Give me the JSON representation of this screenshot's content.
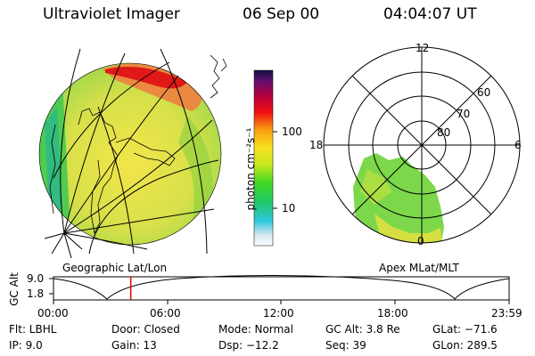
{
  "header": {
    "instrument": "Ultraviolet Imager",
    "date": "06 Sep 00",
    "time": "04:04:07 UT"
  },
  "colorbar": {
    "unit_label": "photon cm⁻²s⁻¹",
    "ticks": [
      "100",
      "10"
    ]
  },
  "polar": {
    "mlt_labels": [
      "12",
      "18",
      "6",
      "0"
    ],
    "lat_labels": [
      "60",
      "70",
      "80"
    ]
  },
  "captions": {
    "left": "Geographic Lat/Lon",
    "right": "Apex MLat/MLT"
  },
  "altitude_plot": {
    "ylabel": "GC Alt",
    "yticks": [
      "9.0",
      "1.8"
    ],
    "xticks": [
      "00:00",
      "06:00",
      "12:00",
      "18:00",
      "23:59"
    ],
    "marker_time_hours": 4.07
  },
  "info": {
    "flt": "Flt: LBHL",
    "ip": "IP: 9.0",
    "door": "Door: Closed",
    "gain": "Gain: 13",
    "mode": "Mode: Normal",
    "dsp": "Dsp: −12.2",
    "gcalt": "GC Alt: 3.8 Re",
    "seq": "Seq: 39",
    "glat": "GLat: −71.6",
    "glon": "GLon: 289.5"
  }
}
